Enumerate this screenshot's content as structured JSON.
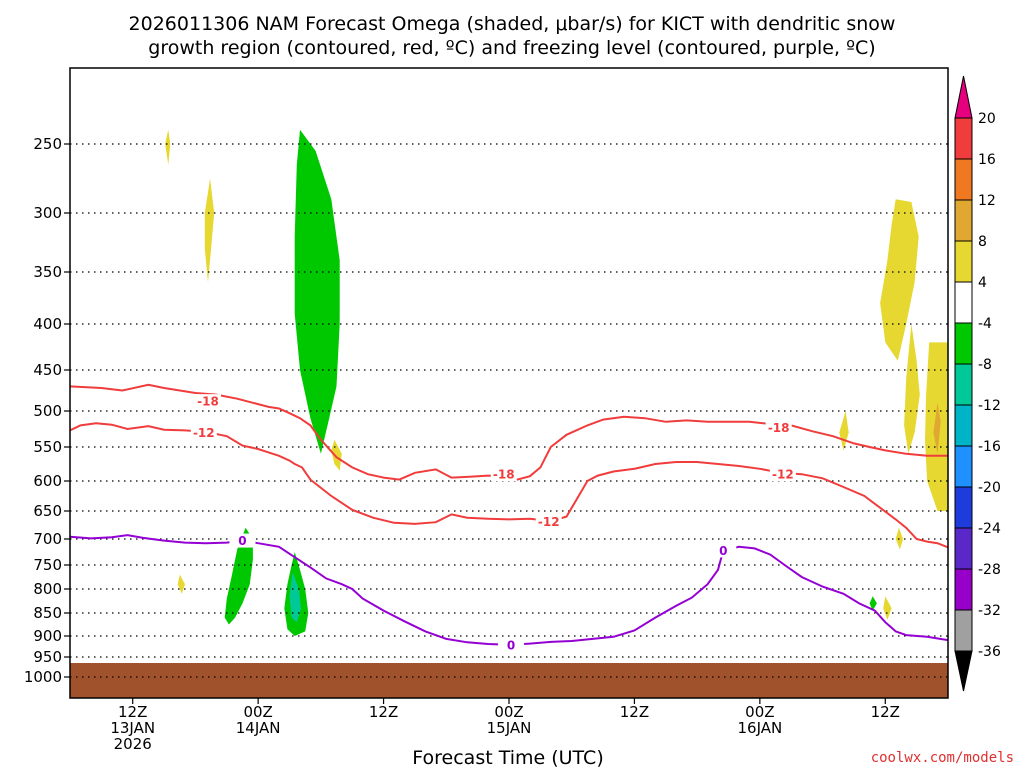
{
  "chart_data": {
    "type": "time-height",
    "title_line1": "2026011306 NAM Forecast Omega (shaded, μbar/s) for KICT with dendritic snow",
    "title_line2": "growth region (contoured, red, ºC) and freezing level (contoured, purple, ºC)",
    "xlabel": "Forecast Time (UTC)",
    "credit": "coolwx.com/models",
    "y_ticks": [
      250,
      300,
      350,
      400,
      450,
      500,
      550,
      600,
      650,
      700,
      750,
      800,
      850,
      900,
      950,
      1000
    ],
    "ylim": [
      1020,
      200
    ],
    "xlim": [
      0,
      84
    ],
    "x_ticks": [
      {
        "hour": 6,
        "l1": "12Z",
        "l2": "13JAN",
        "l3": "2026"
      },
      {
        "hour": 18,
        "l1": "00Z",
        "l2": "14JAN",
        "l3": ""
      },
      {
        "hour": 30,
        "l1": "12Z",
        "l2": "",
        "l3": ""
      },
      {
        "hour": 42,
        "l1": "00Z",
        "l2": "15JAN",
        "l3": ""
      },
      {
        "hour": 54,
        "l1": "12Z",
        "l2": "",
        "l3": ""
      },
      {
        "hour": 66,
        "l1": "00Z",
        "l2": "16JAN",
        "l3": ""
      },
      {
        "hour": 78,
        "l1": "12Z",
        "l2": "",
        "l3": ""
      }
    ],
    "ground_level_hpa": 965,
    "ground_color": "#a0522d",
    "colorbar": {
      "labels": [
        "20",
        "16",
        "12",
        "8",
        "4",
        "-4",
        "-8",
        "-12",
        "-16",
        "-20",
        "-24",
        "-28",
        "-32",
        "-36"
      ],
      "colors": [
        "#f03c3c",
        "#f07820",
        "#e0a830",
        "#e6d830",
        "#ffffff",
        "#00c800",
        "#00c896",
        "#00b4c8",
        "#1e90ff",
        "#1e3cdc",
        "#5a28c8",
        "#9600c8",
        "#a0a0a0"
      ],
      "top_arrow": "#e6007e",
      "bottom_arrow": "#000000"
    },
    "series": [
      {
        "name": "-18",
        "color": "#f03c3c",
        "label_at": [
          [
            13.2,
            488
          ],
          [
            41.5,
            590
          ],
          [
            67.8,
            523
          ]
        ],
        "points": [
          [
            0,
            470
          ],
          [
            3,
            472
          ],
          [
            5,
            475
          ],
          [
            7.5,
            468
          ],
          [
            9,
            472
          ],
          [
            10.5,
            475
          ],
          [
            12,
            478
          ],
          [
            14,
            480
          ],
          [
            16,
            485
          ],
          [
            17.5,
            490
          ],
          [
            19,
            495
          ],
          [
            20,
            497
          ],
          [
            21,
            503
          ],
          [
            22,
            510
          ],
          [
            23,
            520
          ],
          [
            24,
            540
          ],
          [
            25.5,
            565
          ],
          [
            27,
            580
          ],
          [
            28.5,
            590
          ],
          [
            30,
            595
          ],
          [
            31.5,
            598
          ],
          [
            33,
            588
          ],
          [
            35,
            583
          ],
          [
            36.5,
            595
          ],
          [
            38,
            594
          ],
          [
            40,
            592
          ],
          [
            41.5,
            593
          ],
          [
            42.8,
            598
          ],
          [
            44,
            593
          ],
          [
            45,
            580
          ],
          [
            46,
            550
          ],
          [
            47.5,
            533
          ],
          [
            49.5,
            520
          ],
          [
            51,
            512
          ],
          [
            53,
            508
          ],
          [
            55,
            510
          ],
          [
            57,
            515
          ],
          [
            59,
            513
          ],
          [
            61,
            515
          ],
          [
            63,
            515
          ],
          [
            65,
            515
          ],
          [
            67,
            518
          ],
          [
            69,
            520
          ],
          [
            71,
            528
          ],
          [
            73,
            535
          ],
          [
            75,
            545
          ],
          [
            76.5,
            550
          ],
          [
            78,
            555
          ],
          [
            80,
            560
          ],
          [
            82,
            563
          ],
          [
            84,
            563
          ]
        ]
      },
      {
        "name": "-12",
        "color": "#f03c3c",
        "label_at": [
          [
            12.8,
            530
          ],
          [
            45.8,
            669
          ],
          [
            68.2,
            590
          ]
        ],
        "points": [
          [
            0,
            527
          ],
          [
            1,
            520
          ],
          [
            2.5,
            517
          ],
          [
            4,
            519
          ],
          [
            5.5,
            525
          ],
          [
            7.5,
            521
          ],
          [
            9,
            526
          ],
          [
            11,
            527
          ],
          [
            13,
            529
          ],
          [
            15,
            535
          ],
          [
            16.5,
            548
          ],
          [
            18,
            553
          ],
          [
            19,
            558
          ],
          [
            20,
            563
          ],
          [
            21,
            570
          ],
          [
            21.5,
            575
          ],
          [
            22.2,
            580
          ],
          [
            23,
            598
          ],
          [
            25,
            625
          ],
          [
            27,
            648
          ],
          [
            29,
            662
          ],
          [
            31,
            671
          ],
          [
            33,
            673
          ],
          [
            35,
            670
          ],
          [
            36.5,
            656
          ],
          [
            38,
            662
          ],
          [
            40,
            664
          ],
          [
            42,
            665
          ],
          [
            44,
            664
          ],
          [
            46,
            668
          ],
          [
            47.5,
            660
          ],
          [
            48.5,
            630
          ],
          [
            49.5,
            600
          ],
          [
            50.5,
            592
          ],
          [
            52,
            586
          ],
          [
            54,
            582
          ],
          [
            56,
            575
          ],
          [
            58,
            572
          ],
          [
            60,
            572
          ],
          [
            62,
            575
          ],
          [
            64,
            578
          ],
          [
            66,
            582
          ],
          [
            68,
            588
          ],
          [
            70,
            590
          ],
          [
            72,
            596
          ],
          [
            74,
            610
          ],
          [
            76,
            625
          ],
          [
            77,
            638
          ],
          [
            78,
            651
          ],
          [
            79,
            665
          ],
          [
            80,
            680
          ],
          [
            81,
            700
          ],
          [
            82,
            705
          ],
          [
            83,
            708
          ],
          [
            84,
            716
          ]
        ]
      },
      {
        "name": "0",
        "color": "#9400d3",
        "label_at": [
          [
            16.5,
            703
          ],
          [
            42.2,
            921
          ],
          [
            62.5,
            722
          ]
        ],
        "points": [
          [
            0,
            696
          ],
          [
            2,
            699
          ],
          [
            4,
            697
          ],
          [
            5.5,
            693
          ],
          [
            7,
            698
          ],
          [
            9,
            703
          ],
          [
            11,
            707
          ],
          [
            13,
            708
          ],
          [
            15,
            707
          ],
          [
            16.5,
            703
          ],
          [
            18,
            708
          ],
          [
            20,
            715
          ],
          [
            21.5,
            735
          ],
          [
            23,
            755
          ],
          [
            24.5,
            778
          ],
          [
            26,
            790
          ],
          [
            27,
            800
          ],
          [
            28,
            820
          ],
          [
            30,
            845
          ],
          [
            32,
            868
          ],
          [
            34,
            890
          ],
          [
            36,
            907
          ],
          [
            38,
            915
          ],
          [
            40,
            919
          ],
          [
            42.2,
            921
          ],
          [
            44,
            918
          ],
          [
            46,
            914
          ],
          [
            48,
            912
          ],
          [
            50,
            907
          ],
          [
            52,
            902
          ],
          [
            54,
            888
          ],
          [
            56,
            860
          ],
          [
            58,
            835
          ],
          [
            59.5,
            818
          ],
          [
            61,
            790
          ],
          [
            62,
            760
          ],
          [
            62.5,
            722
          ],
          [
            64,
            715
          ],
          [
            65.5,
            718
          ],
          [
            67,
            730
          ],
          [
            68.5,
            752
          ],
          [
            70,
            775
          ],
          [
            72,
            795
          ],
          [
            74,
            810
          ],
          [
            75.5,
            830
          ],
          [
            77,
            845
          ],
          [
            78,
            870
          ],
          [
            79,
            890
          ],
          [
            80,
            898
          ],
          [
            82,
            902
          ],
          [
            84,
            910
          ]
        ]
      }
    ],
    "omega_shaded": [
      {
        "color": "#00c800",
        "points": [
          [
            22,
            238
          ],
          [
            23.5,
            255
          ],
          [
            25,
            290
          ],
          [
            25.8,
            340
          ],
          [
            25.8,
            400
          ],
          [
            25.5,
            470
          ],
          [
            24.8,
            510
          ],
          [
            24,
            560
          ],
          [
            23,
            510
          ],
          [
            22,
            450
          ],
          [
            21.5,
            390
          ],
          [
            21.5,
            320
          ],
          [
            21.7,
            265
          ]
        ]
      },
      {
        "color": "#00c800",
        "points": [
          [
            16.8,
            680
          ],
          [
            17.5,
            700
          ],
          [
            17.5,
            740
          ],
          [
            17.2,
            790
          ],
          [
            16.5,
            830
          ],
          [
            15.8,
            860
          ],
          [
            15.2,
            875
          ],
          [
            14.8,
            860
          ],
          [
            15.0,
            820
          ],
          [
            15.5,
            770
          ],
          [
            16.0,
            720
          ]
        ]
      },
      {
        "color": "#00c800",
        "points": [
          [
            21.5,
            725
          ],
          [
            22.0,
            760
          ],
          [
            22.5,
            800
          ],
          [
            22.8,
            850
          ],
          [
            22.5,
            890
          ],
          [
            21.5,
            900
          ],
          [
            20.8,
            885
          ],
          [
            20.5,
            840
          ],
          [
            20.8,
            790
          ],
          [
            21.2,
            750
          ]
        ]
      },
      {
        "color": "#00c896",
        "points": [
          [
            21.3,
            765
          ],
          [
            21.9,
            800
          ],
          [
            22.1,
            840
          ],
          [
            21.7,
            870
          ],
          [
            21.2,
            860
          ],
          [
            21.0,
            815
          ]
        ]
      },
      {
        "color": "#00c800",
        "points": [
          [
            76.8,
            815
          ],
          [
            77.2,
            830
          ],
          [
            76.8,
            845
          ],
          [
            76.5,
            830
          ]
        ]
      },
      {
        "color": "#e6d830",
        "points": [
          [
            13.4,
            275
          ],
          [
            13.8,
            300
          ],
          [
            13.5,
            330
          ],
          [
            13.2,
            360
          ],
          [
            12.9,
            330
          ],
          [
            12.9,
            300
          ]
        ]
      },
      {
        "color": "#e6d830",
        "points": [
          [
            9.4,
            238
          ],
          [
            9.6,
            250
          ],
          [
            9.4,
            265
          ],
          [
            9.1,
            250
          ]
        ]
      },
      {
        "color": "#e6d830",
        "points": [
          [
            10.5,
            770
          ],
          [
            11.0,
            790
          ],
          [
            10.7,
            810
          ],
          [
            10.3,
            790
          ]
        ]
      },
      {
        "color": "#e6d830",
        "points": [
          [
            25.3,
            540
          ],
          [
            26.0,
            560
          ],
          [
            25.8,
            585
          ],
          [
            25.3,
            575
          ],
          [
            25.0,
            555
          ]
        ]
      },
      {
        "color": "#e6d830",
        "points": [
          [
            74.2,
            500
          ],
          [
            74.5,
            530
          ],
          [
            74.0,
            555
          ],
          [
            73.6,
            530
          ]
        ]
      },
      {
        "color": "#e6d830",
        "points": [
          [
            78.0,
            815
          ],
          [
            78.6,
            840
          ],
          [
            78.2,
            865
          ],
          [
            77.8,
            840
          ]
        ]
      },
      {
        "color": "#e6d830",
        "points": [
          [
            79.3,
            680
          ],
          [
            79.7,
            700
          ],
          [
            79.4,
            720
          ],
          [
            79.0,
            700
          ]
        ]
      },
      {
        "color": "#e6d830",
        "points": [
          [
            79.0,
            290
          ],
          [
            80.5,
            292
          ],
          [
            81.2,
            320
          ],
          [
            80.8,
            360
          ],
          [
            80.0,
            400
          ],
          [
            79.2,
            440
          ],
          [
            78.0,
            420
          ],
          [
            77.5,
            380
          ],
          [
            78.2,
            340
          ],
          [
            78.6,
            310
          ]
        ]
      },
      {
        "color": "#e6d830",
        "points": [
          [
            80.5,
            400
          ],
          [
            81.0,
            440
          ],
          [
            81.3,
            480
          ],
          [
            80.8,
            530
          ],
          [
            80.2,
            560
          ],
          [
            79.8,
            520
          ],
          [
            80.0,
            460
          ]
        ]
      },
      {
        "color": "#e6d830",
        "points": [
          [
            82.2,
            420
          ],
          [
            84,
            420
          ],
          [
            84,
            650
          ],
          [
            83,
            650
          ],
          [
            82.0,
            600
          ],
          [
            81.8,
            540
          ],
          [
            81.9,
            480
          ]
        ]
      },
      {
        "color": "#e0a830",
        "points": [
          [
            83.0,
            490
          ],
          [
            83.3,
            515
          ],
          [
            83.0,
            560
          ],
          [
            82.6,
            530
          ]
        ]
      }
    ]
  }
}
